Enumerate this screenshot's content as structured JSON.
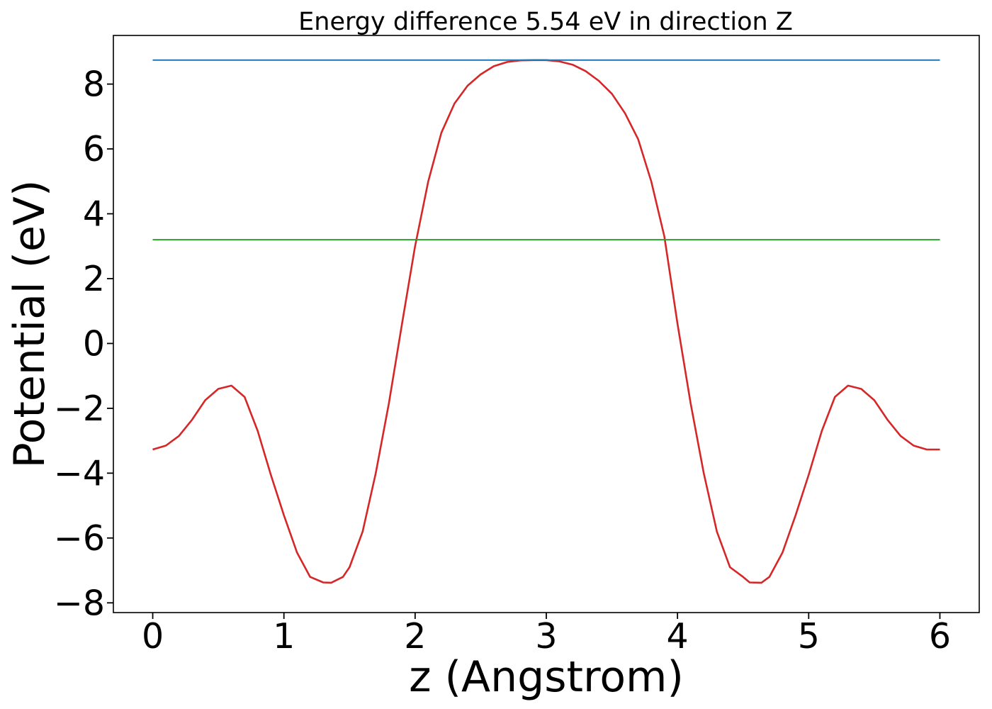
{
  "chart_data": {
    "type": "line",
    "title": "Energy difference 5.54 eV in direction Z",
    "xlabel": "z (Angstrom)",
    "ylabel": "Potential (eV)",
    "xlim": [
      -0.3,
      6.3
    ],
    "ylim": [
      -8.3,
      9.5
    ],
    "xticks": [
      0,
      1,
      2,
      3,
      4,
      5,
      6
    ],
    "yticks": [
      -8,
      -6,
      -4,
      -2,
      0,
      2,
      4,
      6,
      8
    ],
    "xtick_labels": [
      "0",
      "1",
      "2",
      "3",
      "4",
      "5",
      "6"
    ],
    "ytick_labels": [
      "−8",
      "−6",
      "−4",
      "−2",
      "0",
      "2",
      "4",
      "6",
      "8"
    ],
    "grid": false,
    "series": [
      {
        "color": "#d62728",
        "x": [
          0.0,
          0.1,
          0.2,
          0.3,
          0.4,
          0.5,
          0.6,
          0.7,
          0.8,
          0.9,
          1.0,
          1.1,
          1.2,
          1.3,
          1.36,
          1.45,
          1.5,
          1.6,
          1.7,
          1.8,
          1.9,
          2.0,
          2.1,
          2.2,
          2.3,
          2.4,
          2.5,
          2.6,
          2.7,
          2.8,
          2.9,
          3.0,
          3.1,
          3.2,
          3.3,
          3.4,
          3.5,
          3.6,
          3.7,
          3.8,
          3.9,
          4.0,
          4.1,
          4.2,
          4.3,
          4.4,
          4.5,
          4.55,
          4.64,
          4.7,
          4.8,
          4.9,
          5.0,
          5.1,
          5.2,
          5.3,
          5.4,
          5.5,
          5.6,
          5.7,
          5.8,
          5.9,
          6.0
        ],
        "y": [
          -3.27,
          -3.15,
          -2.85,
          -2.35,
          -1.75,
          -1.4,
          -1.3,
          -1.65,
          -2.7,
          -4.05,
          -5.3,
          -6.45,
          -7.2,
          -7.37,
          -7.38,
          -7.2,
          -6.9,
          -5.8,
          -4.0,
          -1.85,
          0.6,
          3.0,
          5.0,
          6.5,
          7.4,
          7.95,
          8.3,
          8.55,
          8.68,
          8.73,
          8.74,
          8.74,
          8.7,
          8.6,
          8.4,
          8.1,
          7.7,
          7.1,
          6.3,
          5.0,
          3.3,
          0.6,
          -1.85,
          -4.0,
          -5.8,
          -6.9,
          -7.2,
          -7.37,
          -7.38,
          -7.2,
          -6.45,
          -5.3,
          -4.05,
          -2.7,
          -1.65,
          -1.3,
          -1.4,
          -1.75,
          -2.35,
          -2.85,
          -3.15,
          -3.27,
          -3.27
        ]
      },
      {
        "color": "#1f77b4",
        "x": [
          0.0,
          6.0
        ],
        "y": [
          8.74,
          8.74
        ]
      },
      {
        "color": "#2ca02c",
        "x": [
          0.0,
          6.0
        ],
        "y": [
          3.2,
          3.2
        ]
      }
    ]
  }
}
